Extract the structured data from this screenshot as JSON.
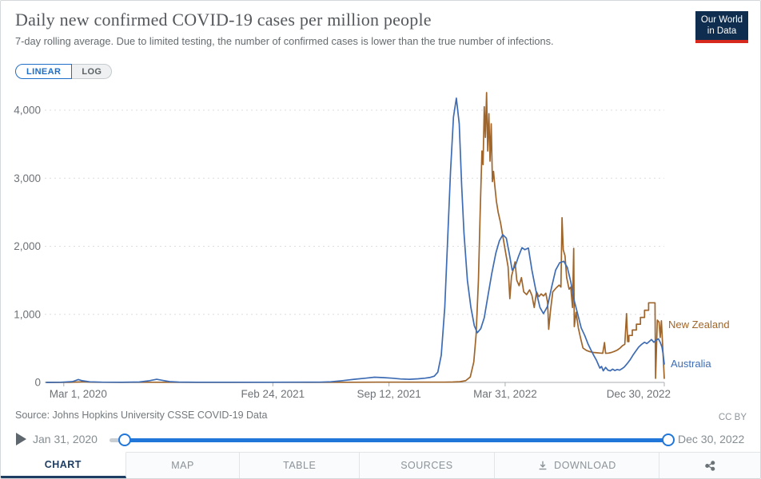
{
  "header": {
    "title": "Daily new confirmed COVID-19 cases per million people",
    "subtitle": "7-day rolling average. Due to limited testing, the number of confirmed cases is lower than the true number of infections.",
    "logo_line1": "Our World",
    "logo_line2": "in Data"
  },
  "toolbar": {
    "linear_label": "LINEAR",
    "log_label": "LOG"
  },
  "colors": {
    "accent_blue": "#2176d9",
    "active_tab_navy": "#1d3d63",
    "logo_bg": "#0f2d4e",
    "logo_bar": "#d8291f",
    "new_zealand": "#a0652a",
    "australia": "#3d6cb4"
  },
  "chart_data": {
    "type": "line",
    "title": "Daily new confirmed COVID-19 cases per million people",
    "xlabel": "",
    "ylabel": "Daily new confirmed cases per million",
    "grid": "horizontal-dashed",
    "legend_position": "end-of-line-labels",
    "x_axis": {
      "unit": "days since Jan 31, 2020",
      "domain_days": [
        0,
        1064
      ],
      "start_date": "Jan 31, 2020",
      "end_date": "Dec 30, 2022",
      "ticks": [
        {
          "day": 30,
          "label": "Mar 1, 2020",
          "anchor": "start"
        },
        {
          "day": 390,
          "label": "Feb 24, 2021",
          "anchor": "middle"
        },
        {
          "day": 590,
          "label": "Sep 12, 2021",
          "anchor": "middle"
        },
        {
          "day": 790,
          "label": "Mar 31, 2022",
          "anchor": "middle"
        },
        {
          "day": 1064,
          "label": "Dec 30, 2022",
          "anchor": "end"
        }
      ]
    },
    "y_axis": {
      "ylim": [
        0,
        4000
      ],
      "ticks": [
        {
          "value": 0,
          "label": "0"
        },
        {
          "value": 1000,
          "label": "1,000"
        },
        {
          "value": 2000,
          "label": "2,000"
        },
        {
          "value": 3000,
          "label": "3,000"
        },
        {
          "value": 4000,
          "label": "4,000"
        }
      ]
    },
    "series": [
      {
        "name": "New Zealand",
        "color": "#a0652a",
        "points": [
          [
            0,
            0
          ],
          [
            40,
            1
          ],
          [
            55,
            6
          ],
          [
            65,
            9
          ],
          [
            75,
            5
          ],
          [
            90,
            2
          ],
          [
            130,
            1
          ],
          [
            180,
            2
          ],
          [
            250,
            1
          ],
          [
            320,
            1
          ],
          [
            390,
            2
          ],
          [
            460,
            1
          ],
          [
            530,
            2
          ],
          [
            570,
            4
          ],
          [
            600,
            4
          ],
          [
            630,
            3
          ],
          [
            660,
            3
          ],
          [
            685,
            4
          ],
          [
            700,
            6
          ],
          [
            712,
            10
          ],
          [
            722,
            25
          ],
          [
            730,
            80
          ],
          [
            736,
            300
          ],
          [
            740,
            700
          ],
          [
            744,
            1500
          ],
          [
            747,
            2500
          ],
          [
            750,
            3400
          ],
          [
            752,
            3200
          ],
          [
            754,
            4050
          ],
          [
            756,
            3600
          ],
          [
            758,
            4258
          ],
          [
            760,
            3400
          ],
          [
            762,
            3950
          ],
          [
            764,
            3250
          ],
          [
            766,
            3800
          ],
          [
            768,
            2950
          ],
          [
            770,
            3100
          ],
          [
            772,
            2900
          ],
          [
            775,
            2660
          ],
          [
            778,
            2500
          ],
          [
            782,
            2350
          ],
          [
            786,
            2150
          ],
          [
            790,
            1950
          ],
          [
            795,
            1700
          ],
          [
            798,
            1230
          ],
          [
            801,
            1560
          ],
          [
            804,
            1660
          ],
          [
            807,
            1770
          ],
          [
            810,
            1500
          ],
          [
            814,
            1420
          ],
          [
            818,
            1540
          ],
          [
            822,
            1330
          ],
          [
            827,
            1290
          ],
          [
            832,
            1360
          ],
          [
            836,
            1280
          ],
          [
            840,
            1100
          ],
          [
            844,
            1330
          ],
          [
            848,
            1260
          ],
          [
            852,
            1300
          ],
          [
            856,
            1270
          ],
          [
            860,
            1310
          ],
          [
            863,
            1180
          ],
          [
            865,
            780
          ],
          [
            868,
            1050
          ],
          [
            872,
            1330
          ],
          [
            878,
            1390
          ],
          [
            883,
            1430
          ],
          [
            886,
            1400
          ],
          [
            888,
            2420
          ],
          [
            890,
            1950
          ],
          [
            893,
            1860
          ],
          [
            896,
            1540
          ],
          [
            900,
            1370
          ],
          [
            903,
            1400
          ],
          [
            906,
            1100
          ],
          [
            908,
            1970
          ],
          [
            909,
            820
          ],
          [
            912,
            1030
          ],
          [
            916,
            800
          ],
          [
            920,
            645
          ],
          [
            924,
            505
          ],
          [
            930,
            470
          ],
          [
            936,
            450
          ],
          [
            942,
            440
          ],
          [
            948,
            435
          ],
          [
            954,
            430
          ],
          [
            958,
            428
          ],
          [
            961,
            585
          ],
          [
            963,
            428
          ],
          [
            968,
            430
          ],
          [
            973,
            440
          ],
          [
            978,
            455
          ],
          [
            983,
            475
          ],
          [
            988,
            505
          ],
          [
            992,
            540
          ],
          [
            996,
            560
          ],
          [
            999,
            1010
          ],
          [
            1001,
            600
          ],
          [
            1003,
            600
          ],
          [
            1003,
            690
          ],
          [
            1009,
            690
          ],
          [
            1009,
            770
          ],
          [
            1016,
            770
          ],
          [
            1016,
            855
          ],
          [
            1023,
            855
          ],
          [
            1023,
            955
          ],
          [
            1030,
            955
          ],
          [
            1030,
            1060
          ],
          [
            1037,
            1060
          ],
          [
            1037,
            1170
          ],
          [
            1048,
            1170
          ],
          [
            1049,
            60
          ],
          [
            1052,
            915
          ],
          [
            1055,
            885
          ],
          [
            1057,
            660
          ],
          [
            1059,
            905
          ],
          [
            1064,
            60
          ]
        ]
      },
      {
        "name": "Australia",
        "color": "#3d6cb4",
        "points": [
          [
            0,
            0
          ],
          [
            25,
            2
          ],
          [
            45,
            12
          ],
          [
            55,
            42
          ],
          [
            62,
            25
          ],
          [
            75,
            8
          ],
          [
            95,
            3
          ],
          [
            130,
            2
          ],
          [
            160,
            6
          ],
          [
            178,
            26
          ],
          [
            190,
            46
          ],
          [
            200,
            30
          ],
          [
            212,
            12
          ],
          [
            228,
            5
          ],
          [
            260,
            2
          ],
          [
            320,
            2
          ],
          [
            380,
            2
          ],
          [
            440,
            3
          ],
          [
            470,
            4
          ],
          [
            490,
            9
          ],
          [
            510,
            26
          ],
          [
            530,
            46
          ],
          [
            550,
            62
          ],
          [
            565,
            76
          ],
          [
            580,
            70
          ],
          [
            595,
            62
          ],
          [
            610,
            50
          ],
          [
            625,
            46
          ],
          [
            640,
            53
          ],
          [
            652,
            62
          ],
          [
            660,
            72
          ],
          [
            668,
            92
          ],
          [
            674,
            150
          ],
          [
            680,
            400
          ],
          [
            686,
            1100
          ],
          [
            691,
            2100
          ],
          [
            696,
            3100
          ],
          [
            701,
            3900
          ],
          [
            706,
            4176
          ],
          [
            711,
            3800
          ],
          [
            715,
            2900
          ],
          [
            719,
            2200
          ],
          [
            725,
            1500
          ],
          [
            731,
            1100
          ],
          [
            737,
            830
          ],
          [
            742,
            730
          ],
          [
            748,
            790
          ],
          [
            754,
            950
          ],
          [
            760,
            1250
          ],
          [
            767,
            1600
          ],
          [
            774,
            1900
          ],
          [
            780,
            2080
          ],
          [
            786,
            2170
          ],
          [
            792,
            2120
          ],
          [
            797,
            1900
          ],
          [
            802,
            1650
          ],
          [
            807,
            1700
          ],
          [
            813,
            1850
          ],
          [
            819,
            1980
          ],
          [
            824,
            1950
          ],
          [
            830,
            1975
          ],
          [
            836,
            1650
          ],
          [
            843,
            1350
          ],
          [
            850,
            1100
          ],
          [
            856,
            1010
          ],
          [
            863,
            1120
          ],
          [
            870,
            1400
          ],
          [
            877,
            1650
          ],
          [
            884,
            1760
          ],
          [
            891,
            1780
          ],
          [
            897,
            1690
          ],
          [
            903,
            1480
          ],
          [
            909,
            1200
          ],
          [
            915,
            1000
          ],
          [
            921,
            800
          ],
          [
            927,
            690
          ],
          [
            933,
            560
          ],
          [
            938,
            470
          ],
          [
            943,
            390
          ],
          [
            947,
            330
          ],
          [
            950,
            270
          ],
          [
            953,
            210
          ],
          [
            956,
            235
          ],
          [
            959,
            170
          ],
          [
            963,
            220
          ],
          [
            967,
            180
          ],
          [
            971,
            170
          ],
          [
            975,
            195
          ],
          [
            979,
            175
          ],
          [
            983,
            190
          ],
          [
            987,
            180
          ],
          [
            991,
            200
          ],
          [
            995,
            225
          ],
          [
            1000,
            275
          ],
          [
            1005,
            330
          ],
          [
            1010,
            400
          ],
          [
            1015,
            460
          ],
          [
            1020,
            520
          ],
          [
            1025,
            560
          ],
          [
            1030,
            590
          ],
          [
            1034,
            570
          ],
          [
            1038,
            600
          ],
          [
            1042,
            630
          ],
          [
            1046,
            590
          ],
          [
            1050,
            620
          ],
          [
            1054,
            640
          ],
          [
            1057,
            590
          ],
          [
            1060,
            520
          ],
          [
            1062,
            420
          ],
          [
            1064,
            270
          ]
        ]
      }
    ]
  },
  "footer": {
    "source": "Source: Johns Hopkins University CSSE COVID-19 Data",
    "license": "CC BY"
  },
  "timeline": {
    "start_label": "Jan 31, 2020",
    "end_label": "Dec 30, 2022"
  },
  "tabs": [
    {
      "label": "CHART",
      "active": true
    },
    {
      "label": "MAP"
    },
    {
      "label": "TABLE"
    },
    {
      "label": "SOURCES"
    },
    {
      "label": "DOWNLOAD",
      "icon": "download-icon"
    },
    {
      "label": "",
      "icon": "share-icon"
    }
  ]
}
